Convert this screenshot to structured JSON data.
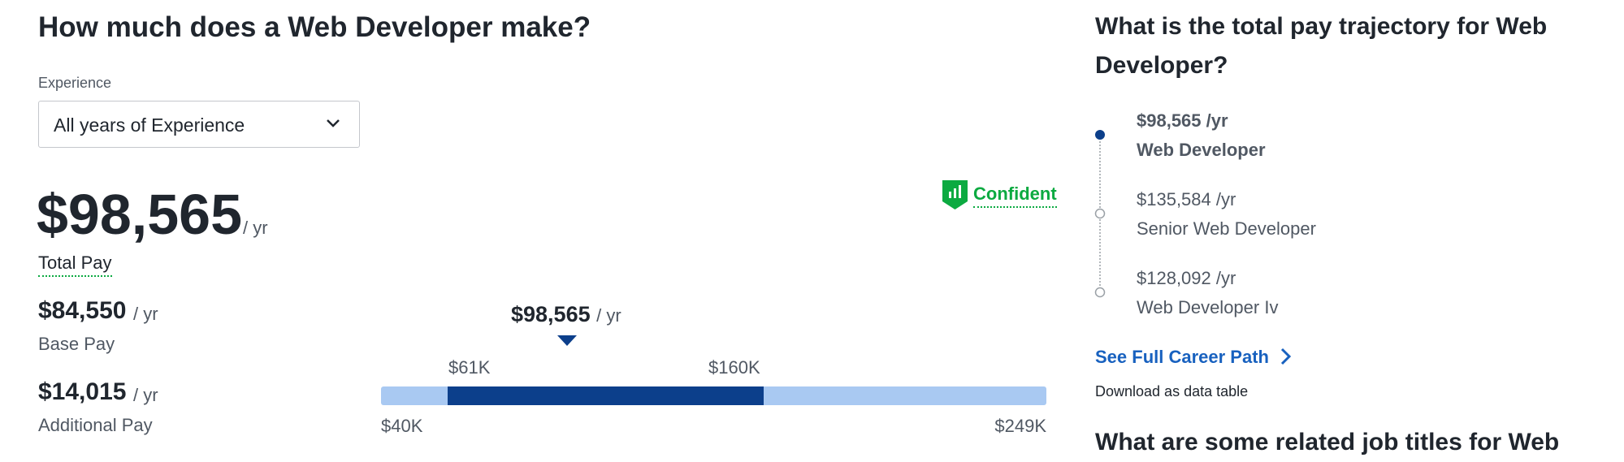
{
  "header": {
    "title": "How much does a Web Developer make?"
  },
  "experience": {
    "label": "Experience",
    "selected": "All years of Experience"
  },
  "total_pay": {
    "amount": "$98,565",
    "unit": "/ yr",
    "label": "Total Pay"
  },
  "base_pay": {
    "amount": "$84,550",
    "unit": "/ yr",
    "label": "Base Pay"
  },
  "additional_pay": {
    "amount": "$14,015",
    "unit": "/ yr",
    "label": "Additional Pay"
  },
  "confidence": "Confident",
  "range": {
    "marker_amount": "$98,565",
    "marker_unit": "/ yr",
    "low": "$61K",
    "high": "$160K",
    "min": "$40K",
    "max": "$249K"
  },
  "trajectory": {
    "title": "What is the total pay trajectory for Web Developer?",
    "items": [
      {
        "pay": "$98,565 /yr",
        "title": "Web Developer"
      },
      {
        "pay": "$135,584 /yr",
        "title": "Senior Web Developer"
      },
      {
        "pay": "$128,092 /yr",
        "title": "Web Developer Iv"
      }
    ],
    "link": "See Full Career Path",
    "download": "Download as data table"
  },
  "next_section": {
    "title": "What are some related job titles for Web"
  }
}
